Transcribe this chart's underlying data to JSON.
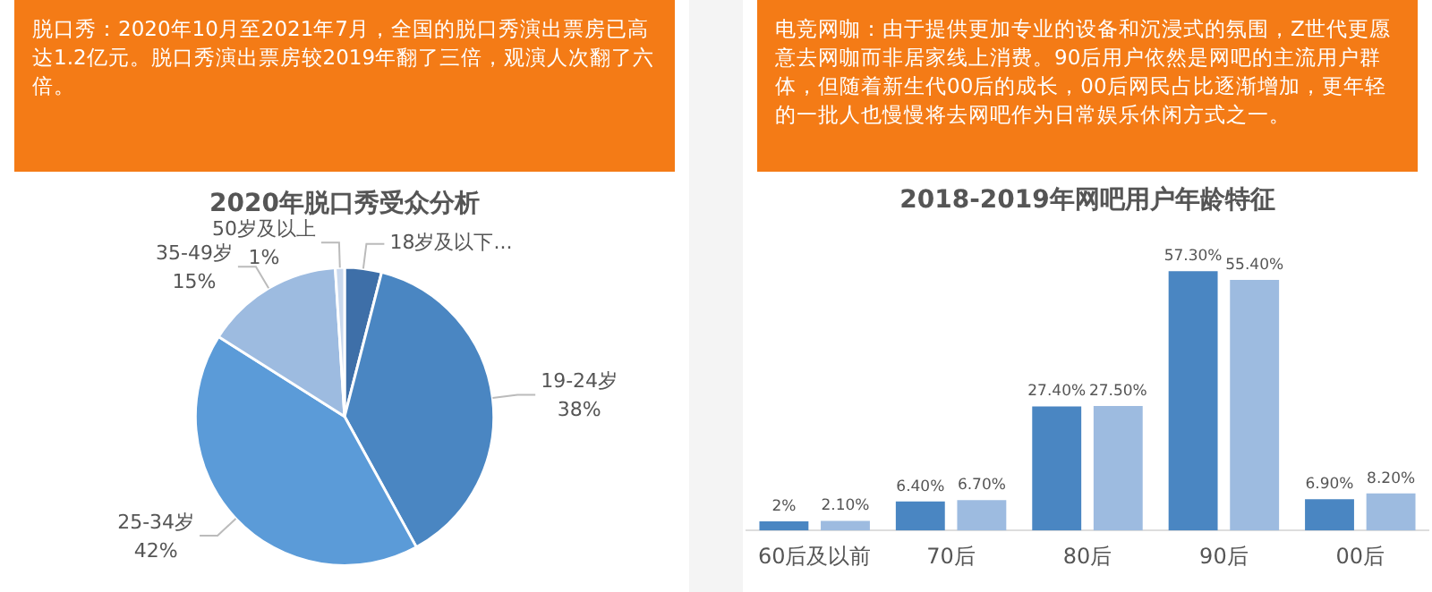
{
  "chart_data": [
    {
      "type": "pie",
      "title": "2020年脱口秀受众分析",
      "annotations": [
        "脱口秀：2020年10月至2021年7月，全国的脱口秀演出票房已高达1.2亿元。脱口秀演出票房较2019年翻了三倍，观演人次翻了六倍。"
      ],
      "categories": [
        "18岁及以下...",
        "19-24岁",
        "25-34岁",
        "35-49岁",
        "50岁及以上"
      ],
      "values": [
        4,
        38,
        42,
        15,
        1
      ],
      "colors": [
        "#3e6fa8",
        "#4a86c2",
        "#5b9bd8",
        "#9dbbe0",
        "#cad9ee"
      ],
      "value_labels": [
        null,
        "38%",
        "42%",
        "15%",
        "1%"
      ]
    },
    {
      "type": "bar",
      "title": "2018-2019年网吧用户年龄特征",
      "annotations": [
        "电竞网咖：由于提供更加专业的设备和沉浸式的氛围，Z世代更愿意去网咖而非居家线上消费。90后用户依然是网吧的主流用户群体，但随着新生代00后的成长，00后网民占比逐渐增加，更年轻的一批人也慢慢将去网吧作为日常娱乐休闲方式之一。"
      ],
      "categories": [
        "60后及以前",
        "70后",
        "80后",
        "90后",
        "00后"
      ],
      "tick_labels": "x",
      "series": [
        {
          "color": "#4a86c2",
          "values": [
            2,
            6.4,
            27.4,
            57.3,
            6.9
          ],
          "value_labels": [
            "2%",
            "6.40%",
            "27.40%",
            "57.30%",
            "6.90%"
          ]
        },
        {
          "color": "#9dbbe0",
          "values": [
            2.1,
            6.7,
            27.5,
            55.4,
            8.2
          ],
          "value_labels": [
            "2.10%",
            "6.70%",
            "27.50%",
            "55.40%",
            "8.20%"
          ]
        }
      ]
    }
  ]
}
